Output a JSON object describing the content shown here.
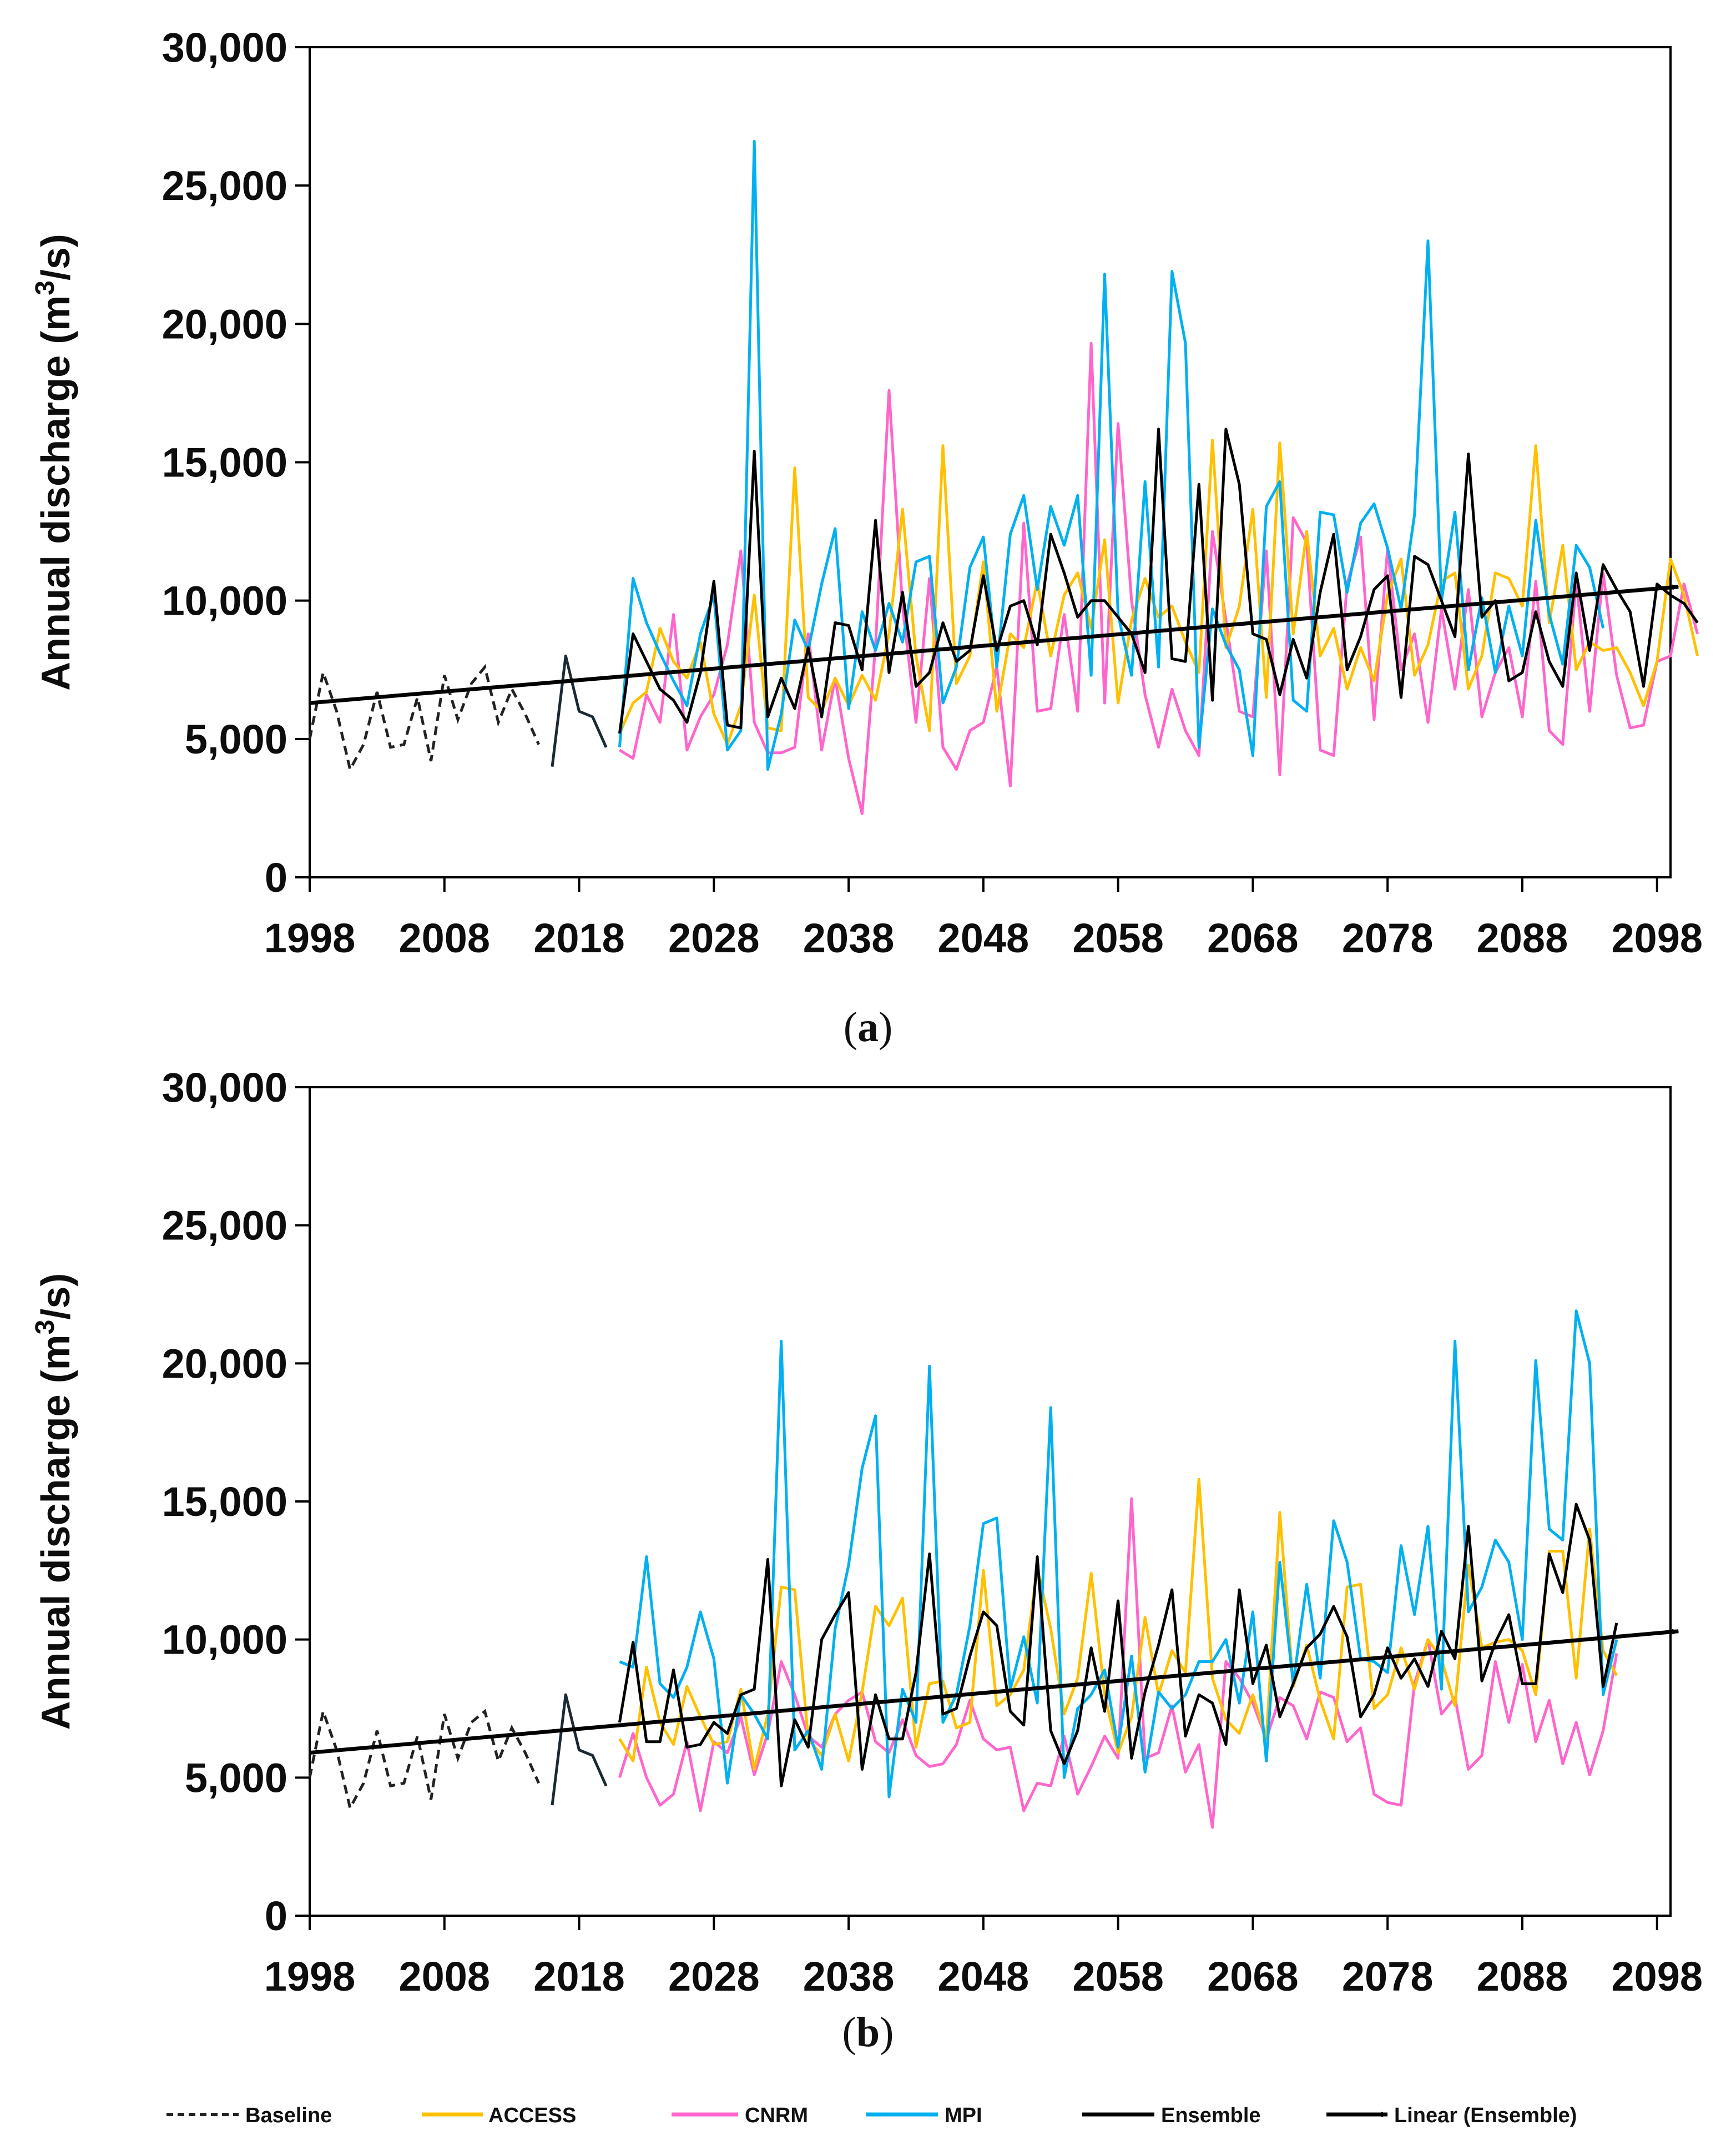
{
  "colors": {
    "baseline": "#222222",
    "access": "#FFC000",
    "cnrm": "#FF66CC",
    "mpi": "#00B0F0",
    "ensemble": "#000000",
    "trend": "#000000"
  },
  "legend": {
    "baseline": "Baseline",
    "access": "ACCESS",
    "cnrm": "CNRM",
    "mpi": "MPI",
    "ensemble": "Ensemble",
    "trend": "Linear (Ensemble)"
  },
  "chart_data": [
    {
      "type": "line",
      "caption_open": "(",
      "caption_letter": "a",
      "caption_close": ")",
      "ylabel_main": "Annual discharge (m",
      "ylabel_sup": "3",
      "ylabel_tail": "/s)",
      "ylim": [
        0,
        30000
      ],
      "xlim": [
        1998,
        2099
      ],
      "yticks": [
        "0",
        "5,000",
        "10,000",
        "15,000",
        "20,000",
        "25,000",
        "30,000"
      ],
      "ytick_values": [
        0,
        5000,
        10000,
        15000,
        20000,
        25000,
        30000
      ],
      "xticks": [
        "1998",
        "2008",
        "2018",
        "2028",
        "2038",
        "2048",
        "2058",
        "2068",
        "2078",
        "2088",
        "2098"
      ],
      "xtick_values": [
        1998,
        2008,
        2018,
        2028,
        2038,
        2048,
        2058,
        2068,
        2078,
        2088,
        2098
      ],
      "baseline": {
        "start_year": 1998,
        "values": [
          5000,
          7400,
          6000,
          3900,
          4800,
          6700,
          4700,
          4800,
          6500,
          4200,
          7300,
          5700,
          7000,
          7600,
          5600,
          6800,
          5900,
          4800
        ]
      },
      "historical_start": 2016,
      "historical_values": [
        4000,
        8000,
        6000,
        5800,
        4700
      ],
      "future_start": 2021,
      "series": [
        {
          "name": "ACCESS",
          "key": "access",
          "values": [
            5200,
            6300,
            6700,
            9000,
            7800,
            7200,
            8500,
            5900,
            4800,
            6200,
            10200,
            5400,
            5300,
            14800,
            6500,
            6000,
            7200,
            6200,
            7300,
            6400,
            8800,
            13300,
            8000,
            5300,
            15600,
            7000,
            8000,
            11400,
            6000,
            8800,
            8300,
            10700,
            8000,
            10200,
            11000,
            9000,
            12200,
            6300,
            9300,
            10800,
            9400,
            9800,
            8500,
            7400,
            15800,
            8300,
            9800,
            13300,
            6500,
            15700,
            8800,
            12500,
            8000,
            9000,
            6800,
            8300,
            7100,
            10200,
            11500,
            7300,
            8400,
            10700,
            11000,
            6800,
            8000,
            11000,
            10800,
            9800,
            15600,
            9200,
            12000,
            7500,
            8500,
            8200,
            8300,
            7400,
            6200,
            7800,
            11500,
            10200,
            8000
          ]
        },
        {
          "name": "CNRM",
          "key": "cnrm",
          "values": [
            4600,
            4300,
            6600,
            5600,
            9500,
            4600,
            5800,
            6600,
            8400,
            11800,
            5600,
            4500,
            4500,
            4700,
            8800,
            4600,
            7200,
            4300,
            2300,
            8400,
            17600,
            9800,
            5600,
            10800,
            4700,
            3900,
            5300,
            5600,
            7600,
            3300,
            12800,
            6000,
            6100,
            9500,
            6000,
            19300,
            6300,
            16400,
            10000,
            6600,
            4700,
            6800,
            5300,
            4400,
            12500,
            9300,
            6000,
            5800,
            11800,
            3700,
            13000,
            12100,
            4600,
            4400,
            10600,
            12300,
            5700,
            11900,
            7500,
            8800,
            5600,
            9700,
            6800,
            10400,
            5800,
            7400,
            8300,
            5800,
            10700,
            5300,
            4800,
            10700,
            6000,
            11000,
            7300,
            5400,
            5500,
            7800,
            8000,
            10600,
            8800
          ]
        },
        {
          "name": "MPI",
          "key": "mpi",
          "values": [
            4700,
            10800,
            9200,
            8100,
            7100,
            6200,
            8800,
            10200,
            4600,
            5300,
            26600,
            3900,
            5900,
            9300,
            8200,
            10600,
            12600,
            6100,
            9600,
            8200,
            9900,
            8500,
            11400,
            11600,
            6300,
            7600,
            11200,
            12300,
            7600,
            12400,
            13800,
            10400,
            13400,
            12000,
            13800,
            7300,
            21800,
            9500,
            7300,
            14300,
            7600,
            21900,
            19300,
            4700,
            9700,
            8400,
            7500,
            4400,
            13400,
            14300,
            6400,
            6000,
            13200,
            13100,
            10300,
            12800,
            13500,
            11900,
            9700,
            13100,
            23000,
            10000,
            13200,
            7500,
            10100,
            7400,
            9800,
            8000,
            12900,
            9500,
            7700,
            12000,
            11200,
            9000
          ]
        },
        {
          "name": "Ensemble",
          "key": "ensemble",
          "values": [
            5200,
            8800,
            7800,
            6800,
            6400,
            5600,
            7400,
            10700,
            5500,
            5400,
            15400,
            5800,
            7200,
            6100,
            8300,
            5800,
            9200,
            9100,
            7500,
            12900,
            7400,
            10300,
            6900,
            7400,
            9200,
            7800,
            8200,
            10900,
            8200,
            9800,
            10000,
            8400,
            12400,
            11000,
            9400,
            10000,
            10000,
            9400,
            8800,
            7400,
            16200,
            7900,
            7800,
            14200,
            6400,
            16200,
            14200,
            8800,
            8600,
            6600,
            8600,
            7200,
            10300,
            12400,
            7500,
            8700,
            10400,
            10900,
            6500,
            11600,
            11300,
            10000,
            8700,
            15300,
            9400,
            10000,
            7100,
            7400,
            9600,
            7800,
            6900,
            11000,
            8200,
            11300,
            10400,
            9600,
            6900,
            10600,
            10200,
            9900,
            9200
          ]
        }
      ],
      "trend": {
        "label": "Linear (Ensemble)",
        "from": [
          1998,
          6300
        ],
        "to": [
          2100,
          10500
        ]
      }
    },
    {
      "type": "line",
      "caption_open": "(",
      "caption_letter": "b",
      "caption_close": ")",
      "ylabel_main": "Annual discharge (m",
      "ylabel_sup": "3",
      "ylabel_tail": "/s)",
      "ylim": [
        0,
        30000
      ],
      "xlim": [
        1998,
        2099
      ],
      "yticks": [
        "0",
        "5,000",
        "10,000",
        "15,000",
        "20,000",
        "25,000",
        "30,000"
      ],
      "ytick_values": [
        0,
        5000,
        10000,
        15000,
        20000,
        25000,
        30000
      ],
      "xticks": [
        "1998",
        "2008",
        "2018",
        "2028",
        "2038",
        "2048",
        "2058",
        "2068",
        "2078",
        "2088",
        "2098"
      ],
      "xtick_values": [
        1998,
        2008,
        2018,
        2028,
        2038,
        2048,
        2058,
        2068,
        2078,
        2088,
        2098
      ],
      "baseline": {
        "start_year": 1998,
        "values": [
          5000,
          7400,
          6000,
          3900,
          4800,
          6700,
          4700,
          4800,
          6500,
          4200,
          7300,
          5700,
          7000,
          7400,
          5600,
          6800,
          5900,
          4800
        ]
      },
      "historical_start": 2016,
      "historical_values": [
        4000,
        8000,
        6000,
        5800,
        4700
      ],
      "future_start": 2021,
      "series": [
        {
          "name": "ACCESS",
          "key": "access",
          "values": [
            6400,
            5600,
            9000,
            7000,
            6200,
            8300,
            7200,
            6200,
            6300,
            8200,
            5300,
            7300,
            11900,
            11800,
            6400,
            5800,
            7300,
            5600,
            8100,
            11200,
            10500,
            11500,
            6100,
            8400,
            8500,
            6800,
            7000,
            12500,
            7600,
            8000,
            8900,
            12600,
            10400,
            7300,
            8600,
            12400,
            8000,
            5900,
            7200,
            10800,
            8000,
            9600,
            8800,
            15800,
            8600,
            7100,
            6600,
            8000,
            6400,
            14600,
            8300,
            9800,
            7800,
            6400,
            11900,
            12000,
            7500,
            8000,
            9700,
            8200,
            10000,
            9300,
            7600,
            12700,
            9700,
            9900,
            10000,
            9600,
            8000,
            13200,
            13200,
            8600,
            14000,
            9600,
            8700
          ]
        },
        {
          "name": "CNRM",
          "key": "cnrm",
          "values": [
            5000,
            6600,
            5000,
            4000,
            4400,
            6300,
            3800,
            6300,
            5900,
            7200,
            5100,
            6600,
            9200,
            8000,
            6500,
            6100,
            7300,
            7800,
            8100,
            6300,
            5900,
            7100,
            5800,
            5400,
            5500,
            6200,
            7800,
            6400,
            6000,
            6100,
            3800,
            4800,
            4700,
            6500,
            4400,
            5400,
            6500,
            5700,
            15100,
            5700,
            5900,
            7600,
            5200,
            6200,
            3200,
            9200,
            8600,
            7700,
            6400,
            7900,
            7600,
            6400,
            8100,
            7900,
            6300,
            6800,
            4400,
            4100,
            4000,
            8400,
            10000,
            7300,
            7900,
            5300,
            5800,
            9200,
            7000,
            9100,
            6300,
            7800,
            5500,
            7000,
            5100,
            6700,
            9500
          ]
        },
        {
          "name": "MPI",
          "key": "mpi",
          "values": [
            9200,
            9000,
            13000,
            8400,
            7900,
            9000,
            11000,
            9300,
            4800,
            8000,
            7300,
            6400,
            20800,
            6000,
            6700,
            5300,
            10400,
            12700,
            16200,
            18100,
            4300,
            8200,
            7000,
            19900,
            7000,
            8000,
            10500,
            14200,
            14400,
            8200,
            10100,
            7700,
            18400,
            5000,
            7500,
            8000,
            8900,
            6100,
            9400,
            5200,
            8100,
            7500,
            8000,
            9200,
            9200,
            10000,
            7700,
            11000,
            5600,
            12800,
            8400,
            12000,
            8600,
            14300,
            12800,
            9300,
            9200,
            8800,
            13400,
            10900,
            14100,
            8200,
            20800,
            11000,
            11900,
            13600,
            12800,
            10000,
            20100,
            14000,
            13600,
            21900,
            20000,
            8000,
            10000
          ]
        },
        {
          "name": "Ensemble",
          "key": "ensemble",
          "values": [
            7000,
            9900,
            6300,
            6300,
            8900,
            6100,
            6200,
            7000,
            6600,
            8000,
            8200,
            12900,
            4700,
            7100,
            6100,
            10000,
            10900,
            11700,
            5300,
            8000,
            6400,
            6400,
            8800,
            13100,
            7300,
            7500,
            9400,
            11000,
            10500,
            7400,
            6900,
            13000,
            6700,
            5500,
            6700,
            9700,
            7400,
            11400,
            5700,
            8100,
            9800,
            11800,
            6500,
            8000,
            7700,
            6200,
            11800,
            8400,
            9800,
            7200,
            8400,
            9700,
            10200,
            11200,
            10100,
            7200,
            8000,
            9700,
            8600,
            9300,
            8300,
            10300,
            9300,
            14100,
            8500,
            9900,
            10900,
            8400,
            8400,
            13100,
            11700,
            14900,
            13600,
            8300,
            10600
          ]
        }
      ],
      "trend": {
        "label": "Linear (Ensemble)",
        "from": [
          1998,
          5900
        ],
        "to": [
          2100,
          10300
        ]
      }
    }
  ]
}
